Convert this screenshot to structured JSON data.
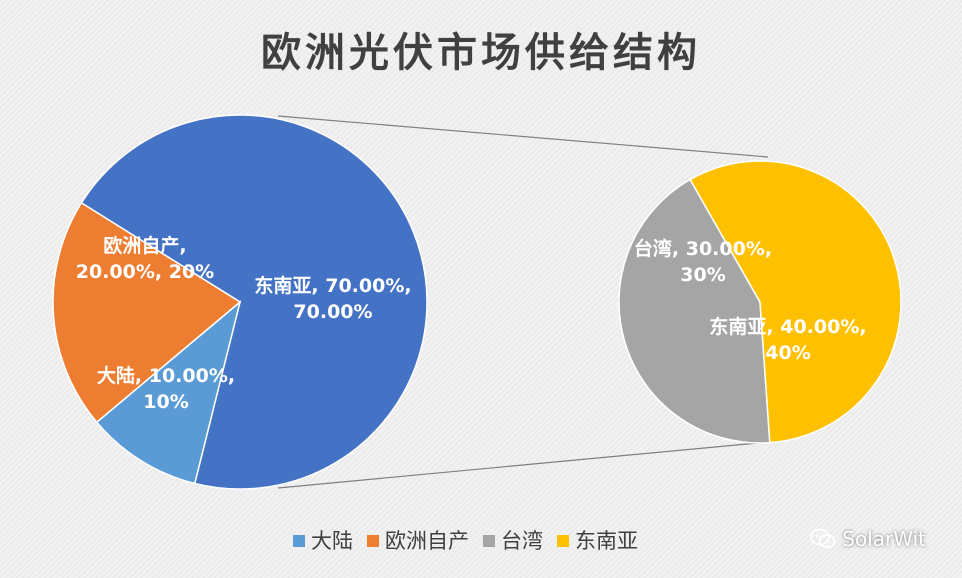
{
  "chart_data": [
    {
      "type": "pie",
      "title": "欧洲光伏市场供给结构",
      "categories": [
        "东南亚",
        "大陆",
        "欧洲自产"
      ],
      "values": [
        70,
        10,
        20
      ],
      "labels": [
        [
          "东南亚, 70.00%,",
          "70.00%"
        ],
        [
          "大陆, 10.00%,",
          "10%"
        ],
        [
          "欧洲自产,",
          "20.00%, 20%"
        ]
      ],
      "colors": [
        "#4472C4",
        "#5B9BD5",
        "#ED7D31"
      ]
    },
    {
      "type": "pie",
      "categories": [
        "台湾",
        "东南亚"
      ],
      "values": [
        30,
        40
      ],
      "labels": [
        [
          "台湾, 30.00%,",
          "30%"
        ],
        [
          "东南亚, 40.00%,",
          "40%"
        ]
      ],
      "colors": [
        "#A5A5A5",
        "#FFC000"
      ]
    }
  ],
  "legend": {
    "placement": "bottom",
    "items": [
      {
        "label": "大陆",
        "color": "#5B9BD5"
      },
      {
        "label": "欧洲自产",
        "color": "#ED7D31"
      },
      {
        "label": "台湾",
        "color": "#A5A5A5"
      },
      {
        "label": "东南亚",
        "color": "#FFC000"
      }
    ]
  },
  "watermark": "SolarWit"
}
